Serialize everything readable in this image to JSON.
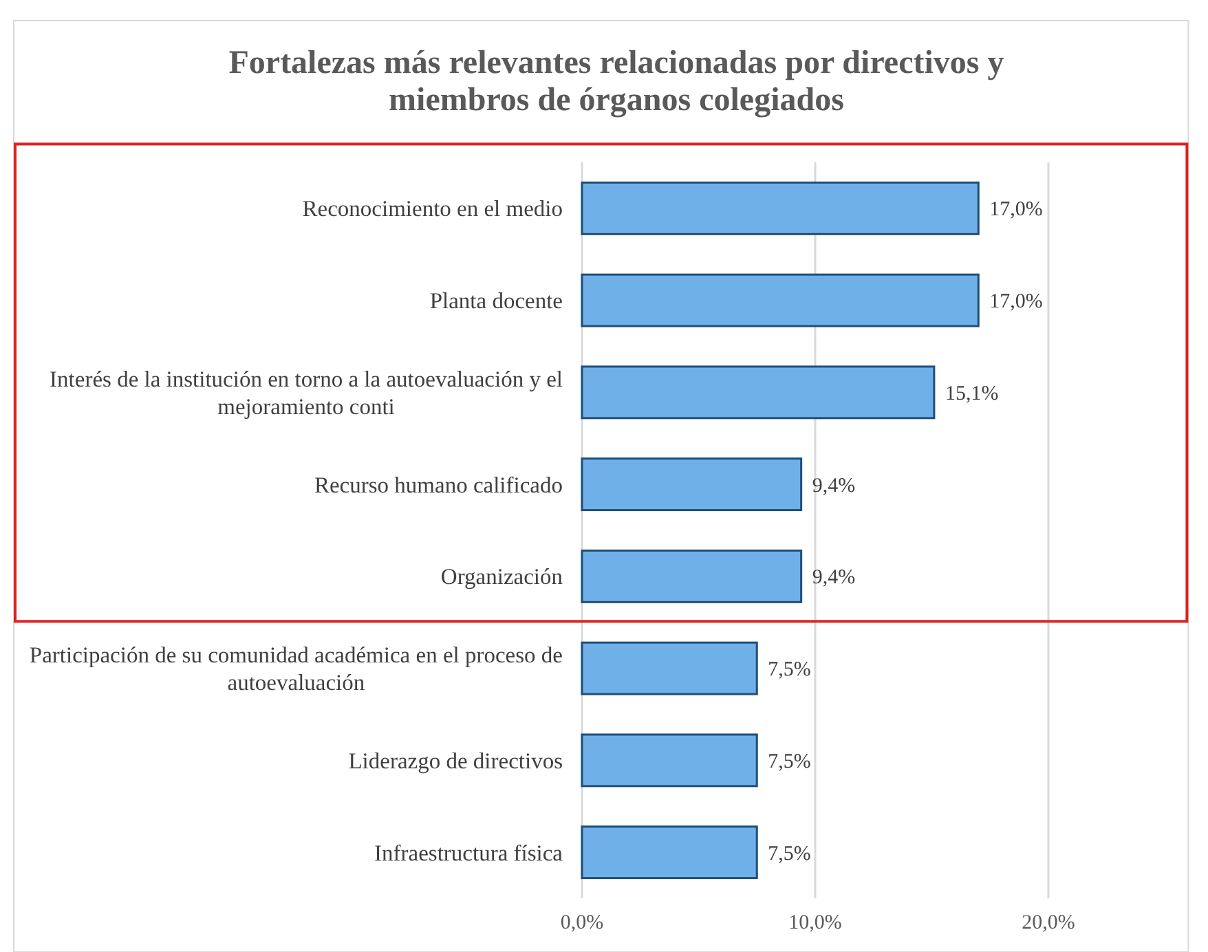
{
  "chart_data": {
    "type": "bar",
    "orientation": "horizontal",
    "title": "Fortalezas más relevantes relacionadas por directivos y miembros de órganos colegiados",
    "categories": [
      "Reconocimiento en el medio",
      "Planta docente",
      "Interés de la institución en torno a la autoevaluación y el mejoramiento conti",
      "Recurso humano calificado",
      "Organización",
      "Participación de su comunidad académica en el proceso de autoevaluación",
      "Liderazgo de directivos",
      "Infraestructura física"
    ],
    "values": [
      17.0,
      17.0,
      15.1,
      9.4,
      9.4,
      7.5,
      7.5,
      7.5
    ],
    "value_labels": [
      "17,0%",
      "17,0%",
      "15,1%",
      "9,4%",
      "9,4%",
      "7,5%",
      "7,5%",
      "7,5%"
    ],
    "color": "#6fb0e8",
    "xlim": [
      0,
      26
    ],
    "xticks": [
      {
        "value": 0,
        "label": "0,0%"
      },
      {
        "value": 10,
        "label": "10,0%"
      },
      {
        "value": 20,
        "label": "20,0%"
      }
    ],
    "grid": "x"
  }
}
